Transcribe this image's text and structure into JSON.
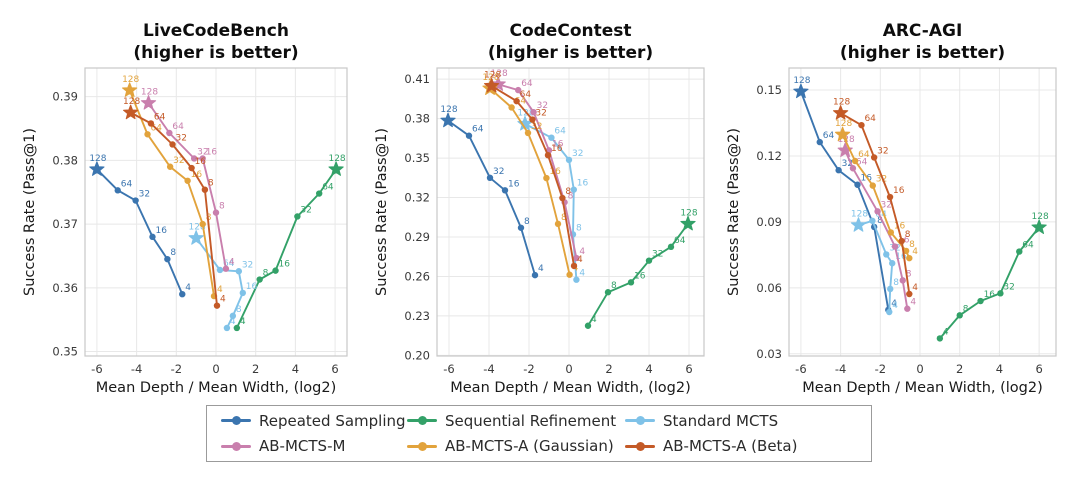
{
  "figure": {
    "background": "#ffffff"
  },
  "legend": {
    "items": [
      {
        "label": "Repeated Sampling",
        "color": "#3b75af"
      },
      {
        "label": "Sequential Refinement",
        "color": "#33a168"
      },
      {
        "label": "Standard MCTS",
        "color": "#7fc2e8"
      },
      {
        "label": "AB-MCTS-M",
        "color": "#c97fad"
      },
      {
        "label": "AB-MCTS-A (Gaussian)",
        "color": "#e2a33c"
      },
      {
        "label": "AB-MCTS-A (Beta)",
        "color": "#c45a27"
      }
    ]
  },
  "chart_data": [
    {
      "type": "line",
      "title": "LiveCodeBench",
      "subtitle": "(higher is better)",
      "xlabel": "Mean Depth / Mean Width, (log2)",
      "ylabel": "Success Rate (Pass@1)",
      "xlim": [
        -6.6,
        6.6
      ],
      "ylim": [
        0.3493,
        0.3945
      ],
      "xticks": [
        -6,
        -4,
        -2,
        0,
        2,
        4,
        6
      ],
      "yticks": [
        0.35,
        0.36,
        0.37,
        0.38,
        0.39
      ],
      "ytick_labels": [
        "0.35",
        "0.36",
        "0.37",
        "0.38",
        "0.39"
      ],
      "grid": true,
      "budgets": [
        "4",
        "8",
        "16",
        "32",
        "64",
        "128"
      ],
      "series": [
        {
          "name": "Repeated Sampling",
          "color": "#3b75af",
          "points": [
            [
              -1.7,
              0.359
            ],
            [
              -2.45,
              0.3645
            ],
            [
              -3.2,
              0.368
            ],
            [
              -4.05,
              0.3737
            ],
            [
              -4.95,
              0.3753
            ],
            [
              -6.0,
              0.3786
            ]
          ]
        },
        {
          "name": "Sequential Refinement",
          "color": "#33a168",
          "points": [
            [
              1.05,
              0.3537
            ],
            [
              2.2,
              0.3613
            ],
            [
              3.0,
              0.3627
            ],
            [
              4.1,
              0.3712
            ],
            [
              5.2,
              0.3748
            ],
            [
              6.05,
              0.3786
            ]
          ]
        },
        {
          "name": "Standard MCTS",
          "color": "#7fc2e8",
          "points": [
            [
              0.55,
              0.3537
            ],
            [
              0.85,
              0.3556
            ],
            [
              1.35,
              0.3592
            ],
            [
              1.15,
              0.3626
            ],
            [
              0.2,
              0.3628
            ],
            [
              -1.0,
              0.3678
            ]
          ]
        },
        {
          "name": "AB-MCTS-M",
          "color": "#c97fad",
          "points": [
            [
              0.5,
              0.363
            ],
            [
              0.0,
              0.3718
            ],
            [
              -0.67,
              0.3803
            ],
            [
              -1.1,
              0.3803
            ],
            [
              -2.35,
              0.3843
            ],
            [
              -3.4,
              0.389
            ]
          ]
        },
        {
          "name": "AB-MCTS-A (Gaussian)",
          "color": "#e2a33c",
          "points": [
            [
              -0.1,
              0.3587
            ],
            [
              -0.67,
              0.37
            ],
            [
              -1.43,
              0.3768
            ],
            [
              -2.31,
              0.379
            ],
            [
              -3.45,
              0.3841
            ],
            [
              -4.35,
              0.391
            ]
          ]
        },
        {
          "name": "AB-MCTS-A (Beta)",
          "color": "#c45a27",
          "points": [
            [
              0.05,
              0.3572
            ],
            [
              -0.56,
              0.3754
            ],
            [
              -1.23,
              0.3788
            ],
            [
              -2.19,
              0.3825
            ],
            [
              -3.28,
              0.3858
            ],
            [
              -4.3,
              0.3875
            ]
          ]
        }
      ]
    },
    {
      "type": "line",
      "title": "CodeContest",
      "subtitle": "(higher is better)",
      "xlabel": "Mean Depth / Mean Width, (log2)",
      "ylabel": "Success Rate (Pass@1)",
      "xlim": [
        -6.6,
        6.75
      ],
      "ylim": [
        0.1995,
        0.4185
      ],
      "xticks": [
        -6,
        -4,
        -2,
        0,
        2,
        4,
        6
      ],
      "yticks": [
        0.2,
        0.23,
        0.26,
        0.29,
        0.32,
        0.35,
        0.38,
        0.41
      ],
      "ytick_labels": [
        "0.20",
        "0.23",
        "0.26",
        "0.29",
        "0.32",
        "0.35",
        "0.38",
        "0.41"
      ],
      "grid": true,
      "budgets": [
        "4",
        "8",
        "16",
        "32",
        "64",
        "128"
      ],
      "series": [
        {
          "name": "Repeated Sampling",
          "color": "#3b75af",
          "points": [
            [
              -1.7,
              0.261
            ],
            [
              -2.4,
              0.297
            ],
            [
              -3.2,
              0.3255
            ],
            [
              -3.95,
              0.335
            ],
            [
              -5.0,
              0.367
            ],
            [
              -6.05,
              0.3785
            ]
          ]
        },
        {
          "name": "Sequential Refinement",
          "color": "#33a168",
          "points": [
            [
              0.95,
              0.2225
            ],
            [
              1.95,
              0.248
            ],
            [
              3.1,
              0.2555
            ],
            [
              4.0,
              0.272
            ],
            [
              5.1,
              0.2825
            ],
            [
              5.95,
              0.3
            ]
          ]
        },
        {
          "name": "Standard MCTS",
          "color": "#7fc2e8",
          "points": [
            [
              0.37,
              0.2575
            ],
            [
              0.2,
              0.292
            ],
            [
              0.24,
              0.326
            ],
            [
              0.0,
              0.3486
            ],
            [
              -0.88,
              0.3655
            ],
            [
              -2.2,
              0.376
            ]
          ]
        },
        {
          "name": "AB-MCTS-M",
          "color": "#c97fad",
          "points": [
            [
              0.37,
              0.274
            ],
            [
              -0.22,
              0.3164
            ],
            [
              -1.0,
              0.3559
            ],
            [
              -1.77,
              0.3849
            ],
            [
              -2.54,
              0.4017
            ],
            [
              -3.54,
              0.4061
            ]
          ]
        },
        {
          "name": "AB-MCTS-A (Gaussian)",
          "color": "#e2a33c",
          "points": [
            [
              0.03,
              0.2613
            ],
            [
              -0.55,
              0.3
            ],
            [
              -1.13,
              0.3348
            ],
            [
              -2.05,
              0.3691
            ],
            [
              -2.87,
              0.3885
            ],
            [
              -3.95,
              0.403
            ]
          ]
        },
        {
          "name": "AB-MCTS-A (Beta)",
          "color": "#c45a27",
          "points": [
            [
              0.25,
              0.268
            ],
            [
              -0.33,
              0.3196
            ],
            [
              -1.05,
              0.3522
            ],
            [
              -1.83,
              0.3793
            ],
            [
              -2.62,
              0.3933
            ],
            [
              -3.87,
              0.4049
            ]
          ]
        }
      ]
    },
    {
      "type": "line",
      "title": "ARC-AGI",
      "subtitle": "(higher is better)",
      "xlabel": "Mean Depth / Mean Width, (log2)",
      "ylabel": "Success Rate (Pass@2)",
      "xlim": [
        -6.6,
        6.85
      ],
      "ylim": [
        0.029,
        0.16
      ],
      "xticks": [
        -6,
        -4,
        -2,
        0,
        2,
        4,
        6
      ],
      "yticks": [
        0.03,
        0.06,
        0.09,
        0.12,
        0.15
      ],
      "ytick_labels": [
        "0.03",
        "0.06",
        "0.09",
        "0.12",
        "0.15"
      ],
      "grid": true,
      "budgets": [
        "4",
        "8",
        "16",
        "32",
        "64",
        "128"
      ],
      "series": [
        {
          "name": "Repeated Sampling",
          "color": "#3b75af",
          "points": [
            [
              -1.6,
              0.05
            ],
            [
              -2.31,
              0.0877
            ],
            [
              -3.15,
              0.1069
            ],
            [
              -4.1,
              0.1135
            ],
            [
              -5.05,
              0.1263
            ],
            [
              -6.0,
              0.1493
            ]
          ]
        },
        {
          "name": "Sequential Refinement",
          "color": "#33a168",
          "points": [
            [
              1.0,
              0.037
            ],
            [
              2.0,
              0.0475
            ],
            [
              3.05,
              0.054
            ],
            [
              4.05,
              0.0575
            ],
            [
              5.0,
              0.0765
            ],
            [
              6.0,
              0.0875
            ]
          ]
        },
        {
          "name": "Standard MCTS",
          "color": "#7fc2e8",
          "points": [
            [
              -1.55,
              0.049
            ],
            [
              -1.5,
              0.0595
            ],
            [
              -1.4,
              0.0712
            ],
            [
              -1.7,
              0.0752
            ],
            [
              -2.4,
              0.0905
            ],
            [
              -3.1,
              0.0885
            ]
          ]
        },
        {
          "name": "AB-MCTS-M",
          "color": "#c97fad",
          "points": [
            [
              -0.64,
              0.0505
            ],
            [
              -0.87,
              0.0634
            ],
            [
              -1.26,
              0.0788
            ],
            [
              -2.14,
              0.0948
            ],
            [
              -3.38,
              0.1144
            ],
            [
              -3.77,
              0.1225
            ]
          ]
        },
        {
          "name": "AB-MCTS-A (Gaussian)",
          "color": "#e2a33c",
          "points": [
            [
              -0.54,
              0.0735
            ],
            [
              -0.7,
              0.0768
            ],
            [
              -1.47,
              0.0852
            ],
            [
              -2.38,
              0.1065
            ],
            [
              -3.27,
              0.1177
            ],
            [
              -3.9,
              0.1297
            ]
          ]
        },
        {
          "name": "AB-MCTS-A (Beta)",
          "color": "#c45a27",
          "points": [
            [
              -0.54,
              0.0572
            ],
            [
              -0.92,
              0.0813
            ],
            [
              -1.51,
              0.1013
            ],
            [
              -2.31,
              0.1193
            ],
            [
              -2.95,
              0.134
            ],
            [
              -4.0,
              0.1395
            ]
          ]
        }
      ]
    }
  ]
}
